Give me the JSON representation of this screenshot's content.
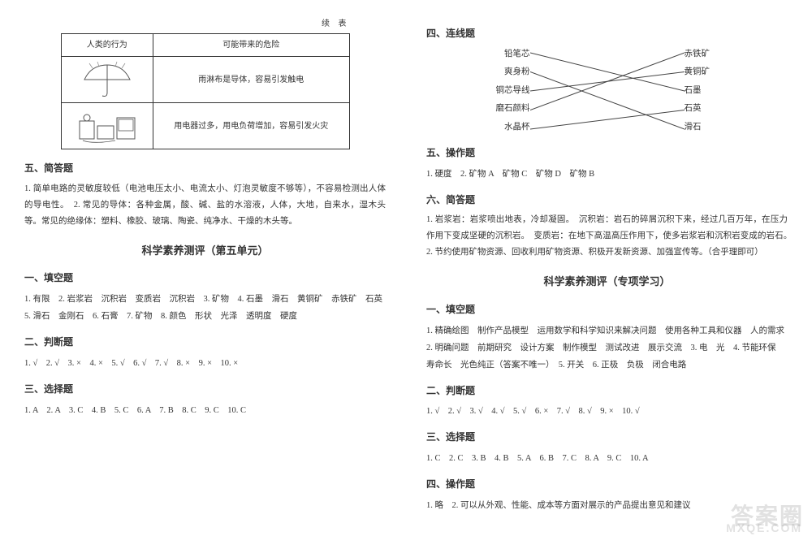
{
  "colors": {
    "text": "#333333",
    "border": "#333333",
    "bg": "#ffffff",
    "line": "#444444",
    "watermark": "rgba(120,120,120,0.22)"
  },
  "left": {
    "table": {
      "caption": "续  表",
      "header_left": "人类的行为",
      "header_right": "可能带来的危险",
      "row1_right": "雨淋布是导体，容易引发触电",
      "row2_right": "用电器过多，用电负荷增加，容易引发火灾"
    },
    "sec5": {
      "title": "五、简答题",
      "text": "1. 简单电路的灵敏度较低（电池电压太小、电流太小、灯泡灵敏度不够等），不容易检测出人体的导电性。　2. 常见的导体：各种金属，酸、碱、盐的水溶液，人体，大地，自来水，湿木头等。常见的绝缘体：塑料、橡胶、玻璃、陶瓷、纯净水、干燥的木头等。"
    },
    "unit_title": "科学素养测评（第五单元）",
    "fill": {
      "title": "一、填空题",
      "text": "1. 有限　2. 岩浆岩　沉积岩　变质岩　沉积岩　3. 矿物　4. 石墨　滑石　黄铜矿　赤铁矿　石英　5. 滑石　金刚石　6. 石膏　7. 矿物　8. 颜色　形状　光泽　透明度　硬度"
    },
    "judge": {
      "title": "二、判断题",
      "text": "1. √　2. √　3. ×　4. ×　5. √　6. √　7. √　8. ×　9. ×　10. ×"
    },
    "choice": {
      "title": "三、选择题",
      "text": "1. A　2. A　3. C　4. B　5. C　6. A　7. B　8. C　9. C　10. C"
    }
  },
  "right": {
    "conn": {
      "title": "四、连线题",
      "left_items": [
        "铅笔芯",
        "爽身粉",
        "铜芯导线",
        "磨石颜料",
        "水晶杯"
      ],
      "right_items": [
        "赤铁矿",
        "黄铜矿",
        "石墨",
        "石英",
        "滑石"
      ],
      "edges": [
        {
          "from": 0,
          "to": 2
        },
        {
          "from": 1,
          "to": 4
        },
        {
          "from": 2,
          "to": 1
        },
        {
          "from": 3,
          "to": 0
        },
        {
          "from": 4,
          "to": 3
        }
      ],
      "line_color": "#444444",
      "line_width": 1
    },
    "op": {
      "title": "五、操作题",
      "text": "1. 硬度　2. 矿物 A　矿物 C　矿物 D　矿物 B"
    },
    "short": {
      "title": "六、简答题",
      "text": "1. 岩浆岩：岩浆喷出地表，冷却凝固。　沉积岩：岩石的碎屑沉积下来，经过几百万年，在压力作用下变成坚硬的沉积岩。　变质岩：在地下高温高压作用下，使多岩浆岩和沉积岩变成的岩石。　2. 节约使用矿物资源、回收利用矿物资源、积极开发新资源、加强宣传等。（合乎理即可）"
    },
    "spec_title": "科学素养测评（专项学习）",
    "fill": {
      "title": "一、填空题",
      "text": "1. 精确绘图　制作产品模型　运用数学和科学知识来解决问题　使用各种工具和仪器　人的需求　2. 明确问题　前期研究　设计方案　制作模型　测试改进　展示交流　3. 电　光　4. 节能环保　寿命长　光色纯正（答案不唯一）　5. 开关　6. 正极　负极　闭合电路"
    },
    "judge": {
      "title": "二、判断题",
      "text": "1. √　2. √　3. √　4. √　5. √　6. ×　7. √　8. √　9. ×　10. √"
    },
    "choice": {
      "title": "三、选择题",
      "text": "1. C　2. C　3. B　4. B　5. A　6. B　7. C　8. A　9. C　10. A"
    },
    "op2": {
      "title": "四、操作题",
      "text": "1. 略　2. 可以从外观、性能、成本等方面对展示的产品提出意见和建议"
    }
  },
  "watermark": {
    "main": "答案圈",
    "sub": "MXQE.COM"
  }
}
